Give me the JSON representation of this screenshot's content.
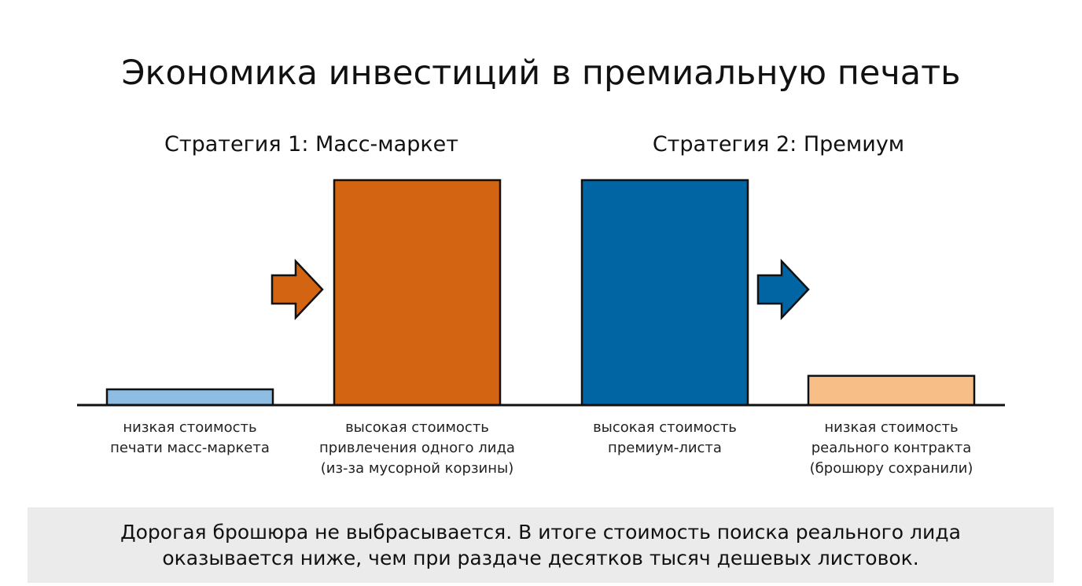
{
  "chart_data": {
    "type": "bar",
    "title": "Экономика инвестиций в премиальную печать",
    "groups": [
      "Стратегия 1: Масс-маркет",
      "Стратегия 2: Премиум"
    ],
    "categories": [
      "низкая стоимость\nпечати масс-маркета",
      "высокая стоимость\nпривлечения одного лида\n(из-за мусорной корзины)",
      "высокая стоимость\nпремиум-листа",
      "низкая стоимость\nреального контракта\n(брошюру сохранили)"
    ],
    "values": [
      7,
      100,
      100,
      13
    ],
    "colors": [
      "#8dbde3",
      "#d36512",
      "#0065a2",
      "#f8be87"
    ],
    "ylim": [
      0,
      100
    ],
    "note": "Дорогая брошюра не выбрасывается. В итоге стоимость поиска реального лида\nоказывается ниже, чем при раздаче десятков тысяч дешевых листовок."
  }
}
